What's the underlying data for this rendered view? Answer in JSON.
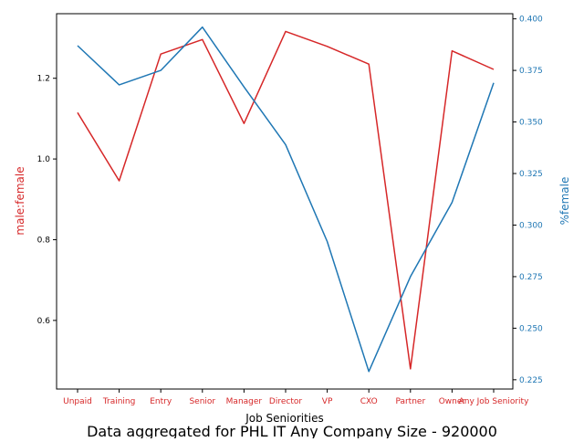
{
  "figure": {
    "caption": "Data aggregated for PHL IT Any Company Size - 920000"
  },
  "colors": {
    "left_series": "#d62728",
    "right_series": "#1f77b4",
    "axis": "#000000"
  },
  "chart_data": {
    "type": "line",
    "title": "",
    "xlabel": "Job Seniorities",
    "categories": [
      "Unpaid",
      "Training",
      "Entry",
      "Senior",
      "Manager",
      "Director",
      "VP",
      "CXO",
      "Partner",
      "Owner",
      "Any Job Seniority"
    ],
    "series": [
      {
        "name": "male:female",
        "axis": "left",
        "color": "#d62728",
        "values": [
          1.115,
          0.946,
          1.26,
          1.296,
          1.088,
          1.316,
          1.279,
          1.235,
          0.48,
          1.268,
          1.222
        ]
      },
      {
        "name": "%female",
        "axis": "right",
        "color": "#1f77b4",
        "values": [
          0.387,
          0.368,
          0.375,
          0.396,
          0.367,
          0.339,
          0.292,
          0.229,
          0.275,
          0.311,
          0.369
        ]
      }
    ],
    "left_axis": {
      "label": "male:female",
      "ylim": [
        0.43,
        1.36
      ],
      "ticks": [
        0.6,
        0.8,
        1.0,
        1.2
      ],
      "tick_labels": [
        "0.6",
        "0.8",
        "1.0",
        "1.2"
      ]
    },
    "right_axis": {
      "label": "%female",
      "ylim": [
        0.2205,
        0.4025
      ],
      "ticks": [
        0.225,
        0.25,
        0.275,
        0.3,
        0.325,
        0.35,
        0.375,
        0.4
      ],
      "tick_labels": [
        "0.225",
        "0.250",
        "0.275",
        "0.300",
        "0.325",
        "0.350",
        "0.375",
        "0.400"
      ]
    },
    "grid": false,
    "legend": "none"
  }
}
